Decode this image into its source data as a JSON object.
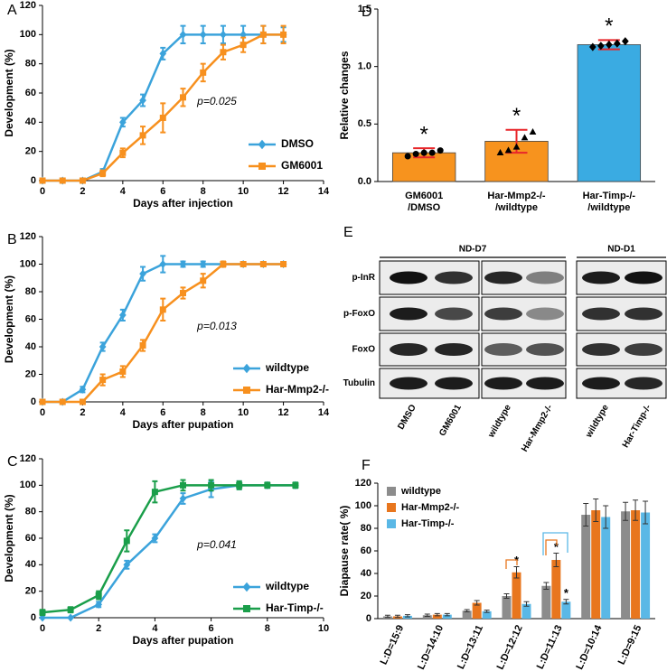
{
  "chart_data": [
    {
      "type": "line",
      "label": "A",
      "xlabel": "Days after injection",
      "ylabel": "Development (%)",
      "annotation": "p=0.025",
      "legend": "lower right",
      "xlim": [
        0,
        14
      ],
      "xticks": [
        0,
        2,
        4,
        6,
        8,
        10,
        12,
        14
      ],
      "ylim": [
        0,
        120
      ],
      "yticks": [
        0,
        20,
        40,
        60,
        80,
        100,
        120
      ],
      "x": [
        0,
        1,
        2,
        3,
        4,
        5,
        6,
        7,
        8,
        9,
        10,
        11,
        12
      ],
      "series": [
        {
          "name": "DMSO",
          "color": "#3ba3db",
          "marker": "diamond",
          "values": [
            0,
            0,
            0,
            6,
            40,
            55,
            87,
            100,
            100,
            100,
            100,
            100,
            100
          ],
          "errors": [
            0,
            0,
            0,
            2,
            3,
            4,
            4,
            6,
            6,
            6,
            6,
            6,
            5
          ]
        },
        {
          "name": "GM6001",
          "color": "#f7901e",
          "marker": "square",
          "values": [
            0,
            0,
            0,
            5,
            19,
            31,
            43,
            57,
            74,
            88,
            93,
            100,
            100
          ],
          "errors": [
            0,
            0,
            0,
            2,
            3,
            6,
            10,
            6,
            6,
            5,
            5,
            6,
            6
          ]
        }
      ]
    },
    {
      "type": "line",
      "label": "B",
      "xlabel": "Days after pupation",
      "ylabel": "Development (%)",
      "annotation": "p=0.013",
      "legend": "lower right",
      "xlim": [
        0,
        14
      ],
      "xticks": [
        0,
        2,
        4,
        6,
        8,
        10,
        12,
        14
      ],
      "ylim": [
        0,
        120
      ],
      "yticks": [
        0,
        20,
        40,
        60,
        80,
        100,
        120
      ],
      "x": [
        0,
        1,
        2,
        3,
        4,
        5,
        6,
        7,
        8,
        9,
        10,
        11,
        12
      ],
      "series": [
        {
          "name": "wildtype",
          "color": "#3ba3db",
          "marker": "diamond",
          "values": [
            0,
            0,
            9,
            40,
            63,
            93,
            100,
            100,
            100,
            100,
            100,
            100,
            100
          ],
          "errors": [
            0,
            0,
            2,
            3,
            4,
            5,
            6,
            2,
            2,
            0,
            0,
            0,
            0
          ]
        },
        {
          "name": "Har-Mmp2-/-",
          "color": "#f7901e",
          "marker": "square",
          "values": [
            0,
            0,
            0,
            16,
            22,
            41,
            67,
            79,
            88,
            100,
            100,
            100,
            100
          ],
          "errors": [
            0,
            0,
            0,
            4,
            4,
            4,
            8,
            4,
            5,
            2,
            0,
            0,
            0
          ]
        }
      ]
    },
    {
      "type": "line",
      "label": "C",
      "xlabel": "Days after pupation",
      "ylabel": "Development (%)",
      "annotation": "p=0.041",
      "legend": "lower right",
      "xlim": [
        0,
        10
      ],
      "xticks": [
        0,
        2,
        4,
        6,
        8,
        10
      ],
      "ylim": [
        0,
        120
      ],
      "yticks": [
        0,
        20,
        40,
        60,
        80,
        100,
        120
      ],
      "x": [
        0,
        1,
        2,
        3,
        4,
        5,
        6,
        7,
        8,
        9
      ],
      "series": [
        {
          "name": "wildtype",
          "color": "#3ba3db",
          "marker": "diamond",
          "values": [
            0,
            0,
            10,
            40,
            60,
            90,
            97,
            100,
            100,
            100
          ],
          "errors": [
            0,
            0,
            2,
            3,
            3,
            4,
            6,
            3,
            2,
            2
          ]
        },
        {
          "name": "Har-Timp-/-",
          "color": "#1a9e4a",
          "marker": "square",
          "values": [
            4,
            6,
            17,
            58,
            95,
            100,
            100,
            100,
            100,
            100
          ],
          "errors": [
            2,
            2,
            3,
            8,
            8,
            4,
            4,
            3,
            2,
            2
          ]
        }
      ]
    },
    {
      "type": "bar",
      "label": "D",
      "ylabel": "Relative changes",
      "categories": [
        "GM6001\n/DMSO",
        "Har-Mmp2-/-\n/wildtype",
        "Har-Timp-/-\n/wildtype"
      ],
      "values": [
        0.25,
        0.35,
        1.19
      ],
      "errors": [
        0.04,
        0.1,
        0.04
      ],
      "colors": [
        "#f7931e",
        "#f7931e",
        "#3aabe2"
      ],
      "error_color": "#e8262a",
      "points": [
        [
          0.22,
          0.24,
          0.25,
          0.25,
          0.27
        ],
        [
          0.25,
          0.27,
          0.3,
          0.38,
          0.43
        ],
        [
          1.17,
          1.18,
          1.19,
          1.2,
          1.22
        ]
      ],
      "point_markers": [
        "circle",
        "triangle",
        "diamond"
      ],
      "significance": [
        "*",
        "*",
        "*"
      ],
      "ylim": [
        0,
        1.5
      ],
      "yticks": [
        {
          "value": 0,
          "label": "0.0"
        },
        0.5,
        {
          "value": 1,
          "label": "1.0"
        },
        1.5
      ]
    },
    {
      "type": "bar",
      "label": "F",
      "ylabel": "Diapause rate( %)",
      "legend": "upper left",
      "categories": [
        "L:D=15:9",
        "L:D=14:10",
        "L:D=13:11",
        "L:D=12:12",
        "L:D=11:13",
        "L:D=10:14",
        "L:D=9:15"
      ],
      "ylim": [
        0,
        120
      ],
      "yticks": [
        0,
        20,
        40,
        60,
        80,
        100,
        120
      ],
      "series": [
        {
          "name": "wildtype",
          "color": "#8c8c8c",
          "values": [
            2,
            3,
            7,
            20,
            29,
            92,
            95
          ],
          "errors": [
            1,
            1,
            1,
            2,
            3,
            10,
            8
          ],
          "significance": [
            null,
            null,
            null,
            null,
            null,
            null,
            null
          ]
        },
        {
          "name": "Har-Mmp2-/-",
          "color": "#e8761e",
          "values": [
            2,
            3.5,
            14,
            41,
            52,
            96,
            96
          ],
          "errors": [
            1,
            1,
            2,
            5,
            6,
            10,
            9
          ],
          "significance": [
            null,
            null,
            null,
            "*",
            "*",
            null,
            null
          ]
        },
        {
          "name": "Har-Timp-/-",
          "color": "#5ab8e6",
          "values": [
            2.5,
            3.5,
            6.5,
            13,
            15,
            90,
            94
          ],
          "errors": [
            1,
            1,
            1,
            2,
            2,
            10,
            10
          ],
          "significance": [
            null,
            null,
            null,
            null,
            "*",
            null,
            null
          ]
        }
      ]
    }
  ],
  "blot": {
    "label": "E",
    "groups": [
      "ND-D7",
      "ND-D1"
    ],
    "rows": [
      "p-InR",
      "p-FoxO",
      "FoxO",
      "Tubulin"
    ],
    "lanes": [
      "DMSO",
      "GM6001",
      "wildtype",
      "Har-Mmp2-/-",
      "wildtype",
      "Har-Timp-/-"
    ]
  }
}
